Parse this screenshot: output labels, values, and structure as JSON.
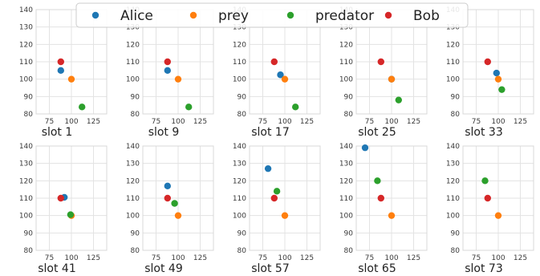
{
  "chart_data": {
    "type": "scatter",
    "xlim": [
      60,
      140
    ],
    "ylim": [
      80,
      140
    ],
    "xticks": [
      75,
      100,
      125
    ],
    "yticks": [
      80,
      90,
      100,
      110,
      120,
      130,
      140
    ],
    "grid": true,
    "legend_position": "top-center",
    "series": [
      {
        "name": "Alice",
        "color": "#1f77b4"
      },
      {
        "name": "prey",
        "color": "#ff7f0e"
      },
      {
        "name": "predator",
        "color": "#2ca02c"
      },
      {
        "name": "Bob",
        "color": "#d62728"
      }
    ],
    "panels": [
      {
        "title": "slot 1",
        "points": {
          "Alice": [
            88,
            105
          ],
          "prey": [
            100,
            100
          ],
          "predator": [
            112,
            84
          ],
          "Bob": [
            88,
            110
          ]
        }
      },
      {
        "title": "slot 9",
        "points": {
          "Alice": [
            88,
            105
          ],
          "prey": [
            100,
            100
          ],
          "predator": [
            112,
            84
          ],
          "Bob": [
            88,
            110
          ]
        }
      },
      {
        "title": "slot 17",
        "points": {
          "Alice": [
            95,
            102.5
          ],
          "prey": [
            100,
            100
          ],
          "predator": [
            112,
            84
          ],
          "Bob": [
            88,
            110
          ]
        }
      },
      {
        "title": "slot 25",
        "points": {
          "Alice": [
            100,
            100
          ],
          "prey": [
            100,
            100
          ],
          "predator": [
            108,
            88
          ],
          "Bob": [
            88,
            110
          ]
        }
      },
      {
        "title": "slot 33",
        "points": {
          "Alice": [
            98,
            103.5
          ],
          "prey": [
            100,
            100
          ],
          "predator": [
            104,
            94
          ],
          "Bob": [
            88,
            110
          ]
        }
      },
      {
        "title": "slot 41",
        "points": {
          "Alice": [
            92,
            110.5
          ],
          "prey": [
            100,
            100
          ],
          "predator": [
            99,
            100.5
          ],
          "Bob": [
            88,
            110
          ]
        }
      },
      {
        "title": "slot 49",
        "points": {
          "Alice": [
            88,
            117
          ],
          "prey": [
            100,
            100
          ],
          "predator": [
            96,
            107
          ],
          "Bob": [
            88,
            110
          ]
        }
      },
      {
        "title": "slot 57",
        "points": {
          "Alice": [
            81,
            127
          ],
          "prey": [
            100,
            100
          ],
          "predator": [
            91,
            114
          ],
          "Bob": [
            88,
            110
          ]
        }
      },
      {
        "title": "slot 65",
        "points": {
          "Alice": [
            70,
            139
          ],
          "prey": [
            100,
            100
          ],
          "predator": [
            84,
            120
          ],
          "Bob": [
            88,
            110
          ]
        }
      },
      {
        "title": "slot 73",
        "points": {
          "Alice": null,
          "prey": [
            100,
            100
          ],
          "predator": [
            85,
            120
          ],
          "Bob": [
            88,
            110
          ]
        }
      }
    ]
  }
}
